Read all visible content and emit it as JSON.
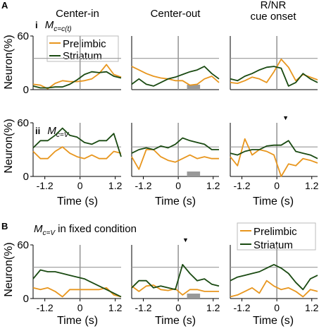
{
  "figure": {
    "panel_letters": [
      "A",
      "B"
    ],
    "column_titles": [
      "Center-in",
      "Center-out",
      "R/NR\ncue onset"
    ],
    "row_labels": [
      {
        "roman": "i",
        "label": "M",
        "subscript": "c=c(t)"
      },
      {
        "roman": "ii",
        "label": "M",
        "subscript": "c=V"
      },
      {
        "roman": "",
        "label": "M",
        "subscript": "c=V",
        "suffix": " in fixed condition"
      }
    ],
    "ylabel": "Neuron(%)",
    "xlabel": "Time (s)",
    "x_tick_labels": [
      "-1.2",
      "0",
      "1.2"
    ],
    "y_tick_labels": [
      "0",
      "60"
    ],
    "legend_A": [
      "Prelimbic",
      "Striatum"
    ],
    "legend_B": [
      "Prelimbic",
      "Striatum"
    ],
    "arrow_marker": "▼",
    "colors": {
      "prelimbic": "#E8961E",
      "striatum": "#1A4A12",
      "reference": "#999999",
      "shade": "#999999"
    }
  },
  "chart_data": [
    {
      "type": "line",
      "row": "A-i",
      "column": "Center-in",
      "x": [
        -1.6,
        -1.35,
        -1.1,
        -0.85,
        -0.6,
        -0.35,
        -0.1,
        0.15,
        0.4,
        0.65,
        0.9,
        1.15,
        1.4
      ],
      "xlim": [
        -1.6,
        1.4
      ],
      "ylim": [
        0,
        60
      ],
      "threshold": 35,
      "series": [
        {
          "name": "Prelimbic",
          "values": [
            6,
            5,
            1,
            7,
            10,
            9,
            9,
            10,
            12,
            18,
            28,
            17,
            14
          ]
        },
        {
          "name": "Striatum",
          "values": [
            4,
            2,
            2,
            3,
            3,
            6,
            11,
            17,
            20,
            19,
            20,
            15,
            13
          ]
        }
      ]
    },
    {
      "type": "line",
      "row": "A-i",
      "column": "Center-out",
      "x": [
        -1.6,
        -1.35,
        -1.1,
        -0.85,
        -0.6,
        -0.35,
        -0.1,
        0.15,
        0.4,
        0.65,
        0.9,
        1.15,
        1.4
      ],
      "xlim": [
        -1.6,
        1.4
      ],
      "ylim": [
        0,
        60
      ],
      "threshold": 35,
      "shaded": [
        0.3,
        0.75
      ],
      "series": [
        {
          "name": "Prelimbic",
          "values": [
            26,
            22,
            18,
            15,
            13,
            12,
            10,
            10,
            5,
            6,
            12,
            15,
            8
          ]
        },
        {
          "name": "Striatum",
          "values": [
            6,
            12,
            6,
            4,
            8,
            12,
            14,
            17,
            20,
            22,
            26,
            18,
            12
          ]
        }
      ]
    },
    {
      "type": "line",
      "row": "A-i",
      "column": "R/NR cue onset",
      "x": [
        -1.6,
        -1.35,
        -1.1,
        -0.85,
        -0.6,
        -0.35,
        -0.1,
        0.15,
        0.4,
        0.65,
        0.9,
        1.15,
        1.4
      ],
      "xlim": [
        -1.6,
        1.4
      ],
      "ylim": [
        0,
        60
      ],
      "threshold": 35,
      "series": [
        {
          "name": "Prelimbic",
          "values": [
            8,
            7,
            10,
            14,
            12,
            8,
            20,
            34,
            25,
            10,
            17,
            14,
            11
          ]
        },
        {
          "name": "Striatum",
          "values": [
            12,
            10,
            15,
            18,
            22,
            25,
            26,
            24,
            4,
            8,
            18,
            12,
            8
          ]
        }
      ]
    },
    {
      "type": "line",
      "row": "A-ii",
      "column": "Center-in",
      "x": [
        -1.6,
        -1.35,
        -1.1,
        -0.85,
        -0.6,
        -0.35,
        -0.1,
        0.15,
        0.4,
        0.65,
        0.9,
        1.15,
        1.4
      ],
      "xlim": [
        -1.6,
        1.4
      ],
      "ylim": [
        0,
        60
      ],
      "threshold": 33,
      "series": [
        {
          "name": "Prelimbic",
          "values": [
            28,
            20,
            20,
            28,
            33,
            26,
            22,
            20,
            24,
            20,
            20,
            28,
            26
          ]
        },
        {
          "name": "Striatum",
          "values": [
            32,
            40,
            40,
            46,
            54,
            46,
            44,
            38,
            36,
            40,
            40,
            48,
            22
          ]
        }
      ]
    },
    {
      "type": "line",
      "row": "A-ii",
      "column": "Center-out",
      "x": [
        -1.6,
        -1.35,
        -1.1,
        -0.85,
        -0.6,
        -0.35,
        -0.1,
        0.15,
        0.4,
        0.65,
        0.9,
        1.15,
        1.4
      ],
      "xlim": [
        -1.6,
        1.4
      ],
      "ylim": [
        0,
        60
      ],
      "threshold": 33,
      "shaded": [
        0.3,
        0.75
      ],
      "series": [
        {
          "name": "Prelimbic",
          "values": [
            22,
            8,
            30,
            30,
            22,
            18,
            16,
            20,
            24,
            20,
            22,
            20,
            20
          ]
        },
        {
          "name": "Striatum",
          "values": [
            26,
            30,
            32,
            30,
            34,
            32,
            36,
            43,
            40,
            38,
            36,
            30,
            30
          ]
        }
      ]
    },
    {
      "type": "line",
      "row": "A-ii",
      "column": "R/NR cue onset",
      "x": [
        -1.6,
        -1.35,
        -1.1,
        -0.85,
        -0.6,
        -0.35,
        -0.1,
        0.15,
        0.4,
        0.65,
        0.9,
        1.15,
        1.4
      ],
      "xlim": [
        -1.6,
        1.4
      ],
      "ylim": [
        0,
        60
      ],
      "threshold": 33,
      "arrow_at": 0.3,
      "series": [
        {
          "name": "Prelimbic",
          "values": [
            22,
            12,
            42,
            24,
            30,
            28,
            24,
            0,
            14,
            12,
            20,
            18,
            15
          ]
        },
        {
          "name": "Striatum",
          "values": [
            26,
            24,
            28,
            30,
            30,
            34,
            35,
            35,
            40,
            28,
            26,
            24,
            20
          ]
        }
      ]
    },
    {
      "type": "line",
      "row": "B",
      "column": "Center-in",
      "x": [
        -1.6,
        -1.35,
        -1.1,
        -0.85,
        -0.6,
        -0.35,
        -0.1,
        0.15,
        0.4,
        0.65,
        0.9,
        1.15,
        1.4
      ],
      "xlim": [
        -1.6,
        1.4
      ],
      "ylim": [
        0,
        60
      ],
      "threshold": 35,
      "series": [
        {
          "name": "Prelimbic",
          "values": [
            12,
            10,
            12,
            8,
            2,
            10,
            10,
            10,
            10,
            10,
            12,
            4,
            2
          ]
        },
        {
          "name": "Striatum",
          "values": [
            22,
            32,
            30,
            30,
            28,
            26,
            24,
            22,
            18,
            14,
            10,
            6,
            2
          ]
        }
      ]
    },
    {
      "type": "line",
      "row": "B",
      "column": "Center-out",
      "x": [
        -1.6,
        -1.35,
        -1.1,
        -0.85,
        -0.6,
        -0.35,
        -0.1,
        0.15,
        0.4,
        0.65,
        0.9,
        1.15,
        1.4
      ],
      "xlim": [
        -1.6,
        1.4
      ],
      "ylim": [
        0,
        60
      ],
      "threshold": 35,
      "shaded": [
        0.3,
        0.75
      ],
      "arrow_at": 0.25,
      "series": [
        {
          "name": "Prelimbic",
          "values": [
            14,
            8,
            14,
            15,
            10,
            9,
            11,
            4,
            10,
            10,
            8,
            8,
            8
          ]
        },
        {
          "name": "Striatum",
          "values": [
            12,
            20,
            20,
            12,
            14,
            12,
            10,
            38,
            28,
            20,
            22,
            16,
            14
          ]
        }
      ]
    },
    {
      "type": "line",
      "row": "B",
      "column": "R/NR cue onset",
      "x": [
        -1.6,
        -1.35,
        -1.1,
        -0.85,
        -0.6,
        -0.35,
        -0.1,
        0.15,
        0.4,
        0.65,
        0.9,
        1.15,
        1.4
      ],
      "xlim": [
        -1.6,
        1.4
      ],
      "ylim": [
        0,
        60
      ],
      "threshold": 35,
      "series": [
        {
          "name": "Prelimbic",
          "values": [
            2,
            4,
            8,
            12,
            6,
            20,
            14,
            10,
            12,
            8,
            2,
            10,
            8
          ]
        },
        {
          "name": "Striatum",
          "values": [
            20,
            24,
            26,
            28,
            30,
            34,
            38,
            34,
            28,
            18,
            10,
            22,
            26
          ]
        }
      ]
    }
  ]
}
